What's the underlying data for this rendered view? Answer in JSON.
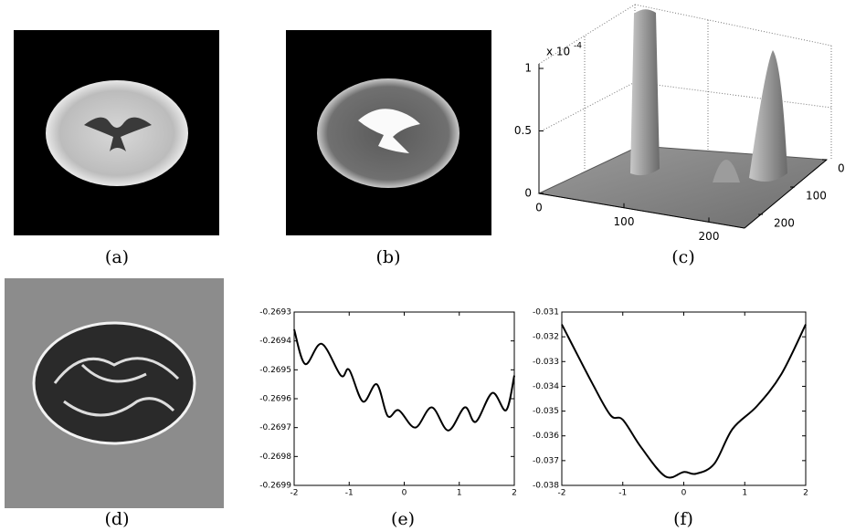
{
  "captions": [
    "(a)",
    "(b)",
    "(c)",
    "(d)",
    "(e)",
    "(f)"
  ],
  "surface_plot": {
    "z_multiplier": {
      "base": "x 10",
      "exponent": "-4"
    },
    "zticks": [
      0,
      0.5,
      1
    ],
    "xticks": [
      0,
      100,
      200
    ],
    "yticks": [
      0,
      100,
      200
    ]
  },
  "chart_data": [
    {
      "type": "line",
      "color": "#000000",
      "x": [
        -2,
        -1.8,
        -1.5,
        -1.15,
        -1.0,
        -0.75,
        -0.5,
        -0.3,
        -0.1,
        0.2,
        0.5,
        0.8,
        1.1,
        1.3,
        1.6,
        1.85,
        2
      ],
      "values": [
        -0.26936,
        -0.26948,
        -0.26941,
        -0.26952,
        -0.2695,
        -0.26961,
        -0.26955,
        -0.26966,
        -0.26964,
        -0.2697,
        -0.26963,
        -0.26971,
        -0.26963,
        -0.26968,
        -0.26958,
        -0.26964,
        -0.26952
      ],
      "xlim": [
        -2,
        2
      ],
      "xticks": [
        -2,
        -1,
        0,
        1,
        2
      ],
      "ylim": [
        -0.2699,
        -0.2693
      ],
      "yticks": [
        -0.2693,
        -0.2694,
        -0.2695,
        -0.2696,
        -0.2697,
        -0.2698,
        -0.2699
      ]
    },
    {
      "type": "line",
      "color": "#000000",
      "x": [
        -2,
        -1.5,
        -1.2,
        -1.0,
        -0.7,
        -0.3,
        0,
        0.2,
        0.5,
        0.8,
        1.2,
        1.6,
        2
      ],
      "values": [
        -0.0315,
        -0.03388,
        -0.03517,
        -0.03535,
        -0.03646,
        -0.03764,
        -0.03746,
        -0.03753,
        -0.03713,
        -0.03572,
        -0.0348,
        -0.03351,
        -0.0315
      ],
      "xlim": [
        -2,
        2
      ],
      "xticks": [
        -2,
        -1,
        0,
        1,
        2
      ],
      "ylim": [
        -0.038,
        -0.031
      ],
      "yticks": [
        -0.031,
        -0.032,
        -0.033,
        -0.034,
        -0.035,
        -0.036,
        -0.037,
        -0.038
      ]
    }
  ]
}
